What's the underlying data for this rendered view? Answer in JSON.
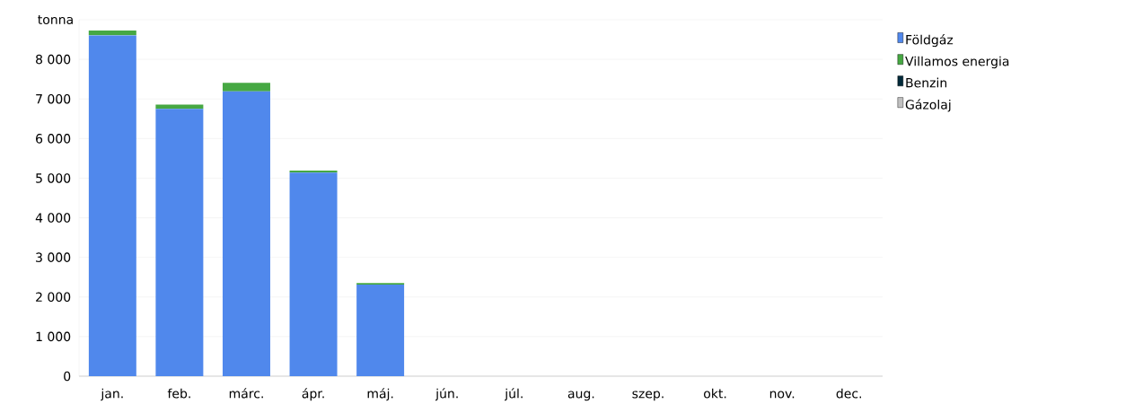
{
  "chart_data": {
    "type": "bar",
    "stacked": true,
    "ylabel": "tonna",
    "categories": [
      "jan.",
      "feb.",
      "márc.",
      "ápr.",
      "máj.",
      "jún.",
      "júl.",
      "aug.",
      "szep.",
      "okt.",
      "nov.",
      "dec."
    ],
    "series": [
      {
        "name": "Földgáz",
        "color": "#5088ec",
        "values": [
          8610,
          6750,
          7190,
          5140,
          2310,
          null,
          null,
          null,
          null,
          null,
          null,
          null
        ]
      },
      {
        "name": "Villamos energia",
        "color": "#46a843",
        "values": [
          120,
          110,
          220,
          50,
          40,
          null,
          null,
          null,
          null,
          null,
          null,
          null
        ]
      },
      {
        "name": "Benzin",
        "color": "#022a3a",
        "values": [
          0,
          0,
          0,
          0,
          0,
          null,
          null,
          null,
          null,
          null,
          null,
          null
        ]
      },
      {
        "name": "Gázolaj",
        "color": "#c0c0c0",
        "values": [
          0,
          0,
          0,
          0,
          0,
          null,
          null,
          null,
          null,
          null,
          null,
          null
        ]
      }
    ],
    "ylim": [
      0,
      9000
    ],
    "yticks": [
      0,
      {
        "value": 1000,
        "label": "1 000"
      },
      {
        "value": 2000,
        "label": "2 000"
      },
      {
        "value": 3000,
        "label": "3 000"
      },
      {
        "value": 4000,
        "label": "4 000"
      },
      {
        "value": 5000,
        "label": "5 000"
      },
      {
        "value": 6000,
        "label": "6 000"
      },
      {
        "value": 7000,
        "label": "7 000"
      },
      {
        "value": 8000,
        "label": "8 000"
      },
      {
        "value": 9000,
        "label": null
      }
    ],
    "grid": "y",
    "legend": "right"
  }
}
